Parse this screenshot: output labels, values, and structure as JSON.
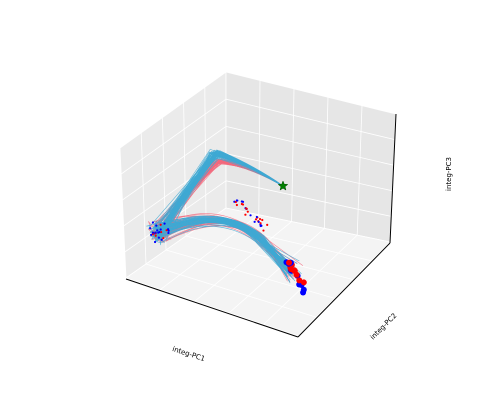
{
  "chart_data": {
    "type": "line",
    "projection": "3d",
    "title": "",
    "xlabel": "integ-PC1",
    "ylabel": "integ-PC2",
    "zlabel": "integ-PC3",
    "grid": true,
    "legend": "none",
    "series": [
      {
        "color": "#3fa9d4",
        "trajectory_count": 60
      },
      {
        "color": "#f26a7e",
        "trajectory_count": 45
      }
    ],
    "markers": [
      {
        "kind": "start",
        "shape": "star",
        "color": "#008000"
      },
      {
        "kind": "endpoints-a",
        "shape": "circle",
        "color": "#0000ff"
      },
      {
        "kind": "endpoints-b",
        "shape": "circle",
        "color": "#ff0000"
      }
    ],
    "colors": {
      "blue_trajectories": "#3fa9d4",
      "red_trajectories": "#f26a7e",
      "start_marker": "#008000",
      "blue_points": "#0000ff",
      "red_points": "#ff0000",
      "pane_floor": "#f2f2f2",
      "pane_left": "#ebebeb",
      "pane_right": "#e6e6e6"
    }
  }
}
